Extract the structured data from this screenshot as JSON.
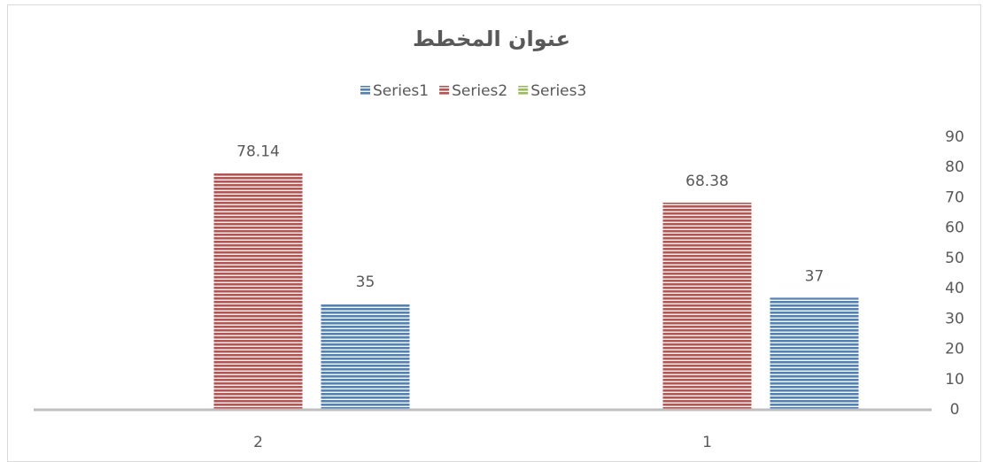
{
  "chart_data": {
    "type": "bar",
    "title": "عنوان المخطط",
    "categories": [
      "1",
      "2"
    ],
    "series": [
      {
        "name": "Series1",
        "color": "#4f81bd",
        "values": [
          37,
          35
        ]
      },
      {
        "name": "Series2",
        "color": "#c0504d",
        "values": [
          68.38,
          78.14
        ]
      },
      {
        "name": "Series3",
        "color": "#9bbb59",
        "values": [
          null,
          null
        ]
      }
    ],
    "ylim": [
      0,
      90
    ],
    "yticks": [
      0,
      10,
      20,
      30,
      40,
      50,
      60,
      70,
      80,
      90
    ],
    "grid": false,
    "legend": "top",
    "axis_side": "right",
    "reversed_categories": true
  }
}
